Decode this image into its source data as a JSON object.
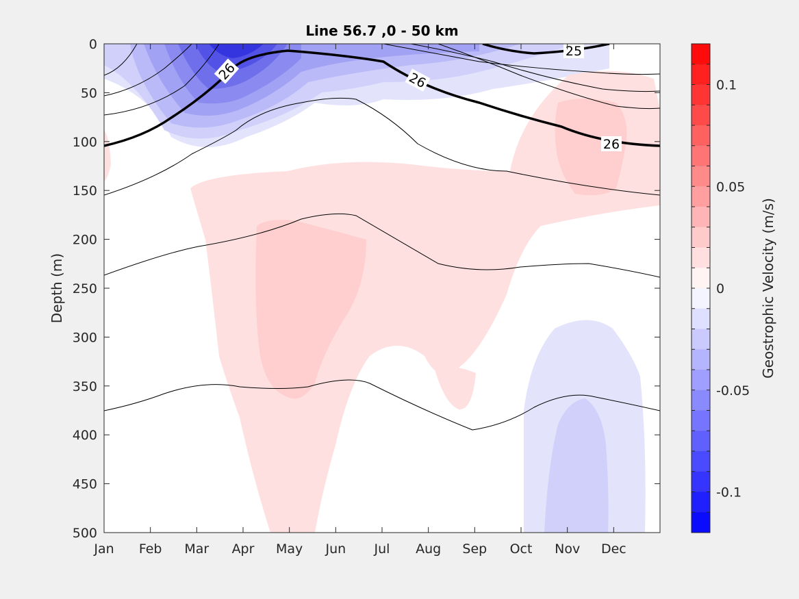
{
  "chart_data": {
    "type": "heatmap",
    "title": "Line 56.7 ,0 - 50 km",
    "xlabel": "",
    "ylabel": "Depth (m)",
    "x_categories": [
      "Jan",
      "Feb",
      "Mar",
      "Apr",
      "May",
      "Jun",
      "Jul",
      "Aug",
      "Sep",
      "Oct",
      "Nov",
      "Dec"
    ],
    "x_range": [
      1,
      13
    ],
    "ylim": [
      0,
      500
    ],
    "y_reversed": true,
    "y_ticks": [
      "0",
      "50",
      "100",
      "150",
      "200",
      "250",
      "300",
      "350",
      "400",
      "450",
      "500"
    ],
    "colorbar": {
      "label": "Geostrophic Velocity (m/s)",
      "ticks": [
        "0.1",
        "0.05",
        "0",
        "-0.05",
        "-0.1"
      ],
      "range": [
        -0.12,
        0.12
      ],
      "levels": 24,
      "colormap": "blue-white-red",
      "negative_color": "#0000ff",
      "positive_color": "#ff0000"
    },
    "velocity_regions": [
      {
        "sign": "negative",
        "description": "surface jet",
        "month_center": 4.0,
        "depth_range": [
          0,
          100
        ],
        "min_value": -0.1
      },
      {
        "sign": "negative",
        "description": "surface band",
        "month_center": 7.5,
        "depth_range": [
          0,
          45
        ],
        "min_value": -0.06
      },
      {
        "sign": "positive",
        "description": "broad subsurface core",
        "month_center": 5.0,
        "depth_range": [
          180,
          360
        ],
        "max_value": 0.03
      },
      {
        "sign": "positive",
        "description": "offshore eddy",
        "month_center": 11.6,
        "depth_range": [
          60,
          150
        ],
        "max_value": 0.035
      },
      {
        "sign": "negative",
        "description": "deep",
        "month_center": 11.0,
        "depth_range": [
          280,
          500
        ],
        "min_value": -0.025
      }
    ],
    "isopycnal_labels": [
      "26",
      "26",
      "25",
      "26"
    ],
    "contour_note": "black isopycnal contour lines; 26 highlighted with thick line"
  }
}
